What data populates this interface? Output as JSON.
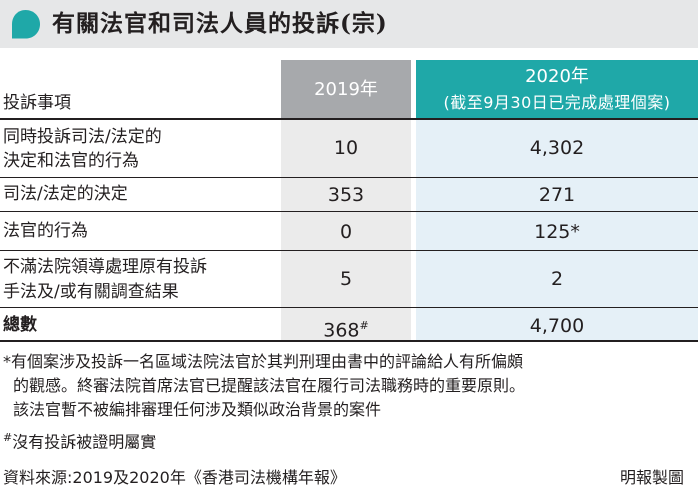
{
  "title": "有關法官和司法人員的投訴(宗)",
  "header": {
    "col_label": "投訴事項",
    "col_2019": "2019年",
    "col_2020_line1": "2020年",
    "col_2020_line2": "(截至9月30日已完成處理個案)"
  },
  "rows": [
    {
      "label_line1": "同時投訴司法/法定的",
      "label_line2": "決定和法官的行為",
      "v2019": "10",
      "v2020": "4,302"
    },
    {
      "label": "司法/法定的決定",
      "v2019": "353",
      "v2020": "271"
    },
    {
      "label": "法官的行為",
      "v2019": "0",
      "v2020": "125*"
    },
    {
      "label_line1": "不滿法院領導處理原有投訴",
      "label_line2": "手法及/或有關調查結果",
      "v2019": "5",
      "v2020": "2"
    }
  ],
  "total": {
    "label": "總數",
    "v2019": "368",
    "v2019_mark": "#",
    "v2020": "4,700"
  },
  "notes": {
    "star_line1": "*有個案涉及投訴一名區域法院法官於其判刑理由書中的評論給人有所偏頗",
    "star_line2": "的觀感。終審法院首席法官已提醒該法官在履行司法職務時的重要原則。",
    "star_line3": "該法官暫不被編排審理任何涉及類似政治背景的案件",
    "hash_mark": "#",
    "hash_text": "沒有投訴被證明屬實",
    "source": "資料來源:2019及2020年《香港司法機構年報》",
    "credit": "明報製圖"
  },
  "colors": {
    "teal": "#1fa8a8",
    "title_bar": "#e6e7e8",
    "grey_header": "#a7a9ac",
    "col_2019_bg": "#ebebeb",
    "col_2020_bg": "#e5f0f7"
  },
  "icons": {
    "title": "green-speech-bubble-icon"
  }
}
